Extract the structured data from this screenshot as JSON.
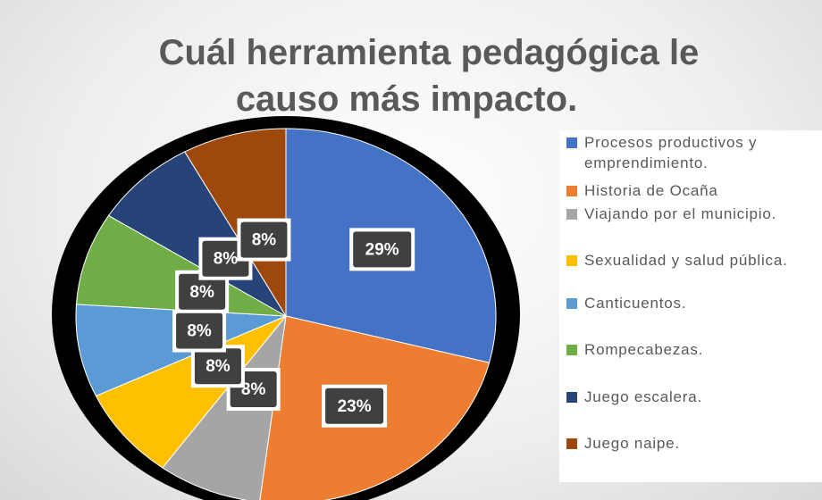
{
  "chart_data": {
    "type": "pie",
    "title": [
      "Cuál herramienta pedagógica le",
      "causo más impacto."
    ],
    "categories": [
      "Procesos productivos y emprendimiento.",
      "Historia de Ocaña",
      "Viajando por el municipio.",
      "Sexualidad y salud pública.",
      "Canticuentos.",
      "Rompecabezas.",
      "Juego escalera.",
      "Juego naipe."
    ],
    "values": [
      29,
      23,
      8,
      8,
      8,
      8,
      8,
      8
    ],
    "value_labels": [
      "29%",
      "23%",
      "8%",
      "8%",
      "8%",
      "8%",
      "8%",
      "8%"
    ],
    "colors": [
      "#4472c4",
      "#ed7d31",
      "#a5a5a5",
      "#ffc000",
      "#5b9bd5",
      "#70ad47",
      "#264478",
      "#9e480e"
    ],
    "legend": "right"
  }
}
